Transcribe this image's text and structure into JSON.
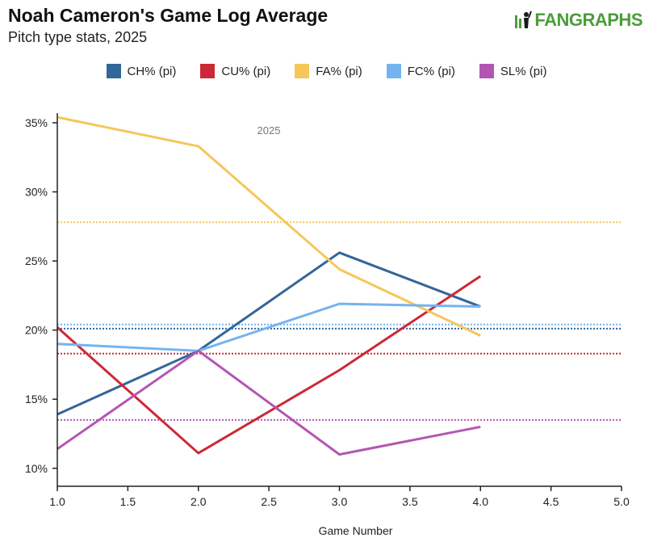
{
  "header": {
    "title": "Noah Cameron's Game Log Average",
    "subtitle": "Pitch type stats, 2025",
    "logo_text": "FANGRAPHS"
  },
  "colors": {
    "logo": "#4a9d3a",
    "axis": "#222222"
  },
  "chart_data": {
    "type": "line",
    "title": "Noah Cameron's Game Log Average",
    "subtitle": "Pitch type stats, 2025",
    "xlabel": "Game Number",
    "ylabel": "",
    "annotation": "2025",
    "xlim": [
      1.0,
      5.0
    ],
    "ylim": [
      8.7,
      35.7
    ],
    "x_ticks": [
      1.0,
      1.5,
      2.0,
      2.5,
      3.0,
      3.5,
      4.0,
      4.5,
      5.0
    ],
    "x_tick_labels": [
      "1.0",
      "1.5",
      "2.0",
      "2.5",
      "3.0",
      "3.5",
      "4.0",
      "4.5",
      "5.0"
    ],
    "y_ticks": [
      10,
      15,
      20,
      25,
      30,
      35
    ],
    "y_tick_labels": [
      "10%",
      "15%",
      "20%",
      "25%",
      "30%",
      "35%"
    ],
    "legend_position": "top",
    "grid": false,
    "x": [
      1,
      2,
      3,
      4
    ],
    "series": [
      {
        "name": "CH% (pi)",
        "color": "#336699",
        "values": [
          13.9,
          18.5,
          25.6,
          21.7
        ],
        "average": 20.1
      },
      {
        "name": "CU% (pi)",
        "color": "#cc2936",
        "values": [
          20.2,
          11.1,
          17.1,
          23.9
        ],
        "average": 18.3
      },
      {
        "name": "FA% (pi)",
        "color": "#f5c75a",
        "values": [
          35.4,
          33.3,
          24.4,
          19.6
        ],
        "average": 27.8
      },
      {
        "name": "FC% (pi)",
        "color": "#74b3f0",
        "values": [
          19.0,
          18.5,
          21.9,
          21.7
        ],
        "average": 20.4
      },
      {
        "name": "SL% (pi)",
        "color": "#b356b3",
        "values": [
          11.4,
          18.5,
          11.0,
          13.0
        ],
        "average": 13.5
      }
    ]
  }
}
